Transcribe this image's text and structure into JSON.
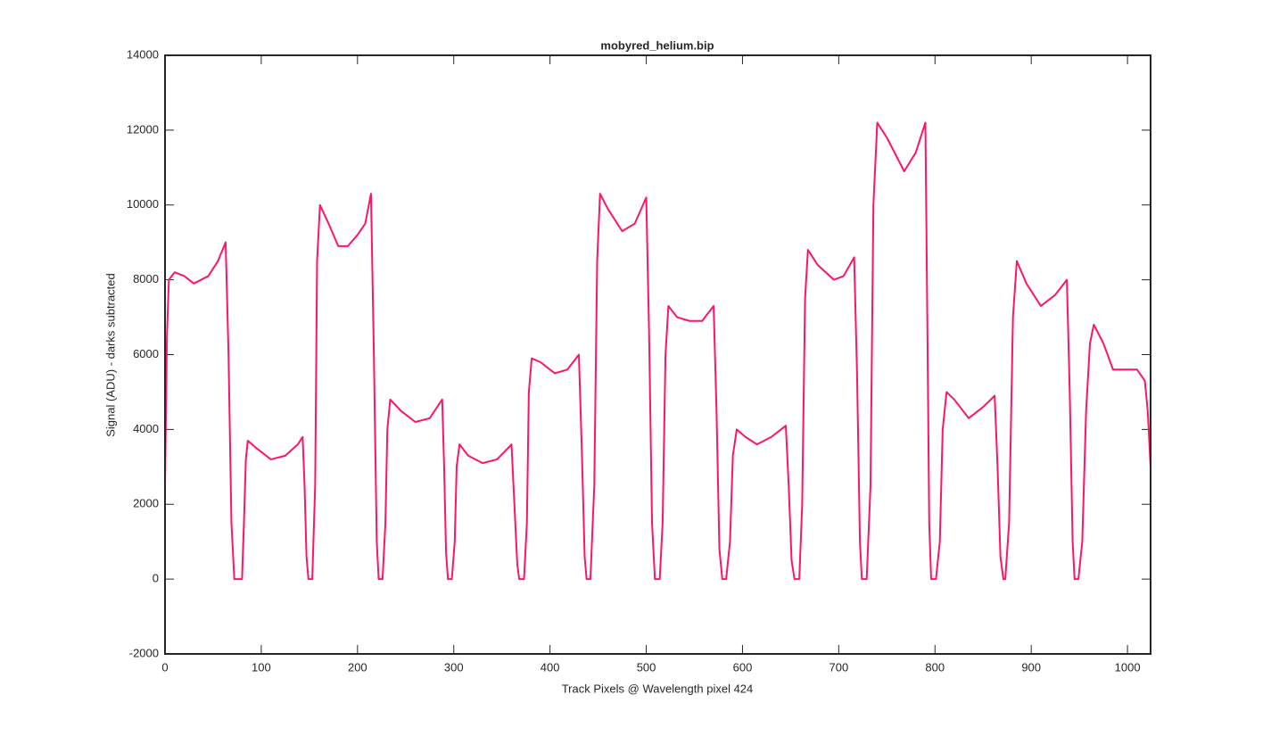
{
  "chart_data": {
    "type": "line",
    "title": "mobyred_helium.bip",
    "x_label": "Track Pixels @ Wavelength pixel 424",
    "y_label": "Signal (ADU) - darks subtracted",
    "color": "#ff1466",
    "x": [
      0,
      2,
      4,
      10,
      20,
      30,
      45,
      55,
      63,
      66,
      69,
      72,
      80,
      82,
      84,
      86,
      95,
      110,
      125,
      138,
      143,
      145,
      147,
      149,
      153,
      156,
      158,
      161,
      170,
      180,
      190,
      200,
      208,
      214,
      217,
      220,
      222,
      226,
      229,
      231,
      234,
      245,
      260,
      275,
      288,
      290,
      292,
      294,
      298,
      301,
      303,
      306,
      315,
      330,
      345,
      360,
      363,
      366,
      368,
      373,
      376,
      378,
      381,
      390,
      405,
      418,
      430,
      433,
      436,
      438,
      442,
      446,
      449,
      452,
      460,
      475,
      488,
      500,
      503,
      506,
      509,
      514,
      517,
      520,
      523,
      532,
      545,
      558,
      570,
      573,
      576,
      579,
      583,
      587,
      590,
      594,
      603,
      615,
      630,
      645,
      648,
      651,
      654,
      659,
      662,
      665,
      668,
      678,
      695,
      705,
      716,
      719,
      722,
      724,
      729,
      733,
      736,
      740,
      750,
      768,
      780,
      790,
      792,
      794,
      796,
      801,
      805,
      808,
      812,
      820,
      835,
      850,
      862,
      865,
      868,
      871,
      873,
      877,
      881,
      885,
      895,
      910,
      925,
      937,
      940,
      943,
      945,
      949,
      953,
      957,
      961,
      965,
      975,
      985,
      1000,
      1010,
      1018,
      1021,
      1024
    ],
    "values": [
      2500,
      6500,
      8000,
      8200,
      8100,
      7900,
      8100,
      8500,
      9000,
      6000,
      1500,
      0,
      0,
      1500,
      3200,
      3700,
      3500,
      3200,
      3300,
      3600,
      3800,
      2500,
      600,
      0,
      0,
      2500,
      8500,
      10000,
      9500,
      8900,
      8900,
      9200,
      9500,
      10300,
      6000,
      1000,
      0,
      0,
      1500,
      4000,
      4800,
      4500,
      4200,
      4300,
      4800,
      3000,
      700,
      0,
      0,
      1000,
      3000,
      3600,
      3300,
      3100,
      3200,
      3600,
      2000,
      400,
      0,
      0,
      1500,
      5000,
      5900,
      5800,
      5500,
      5600,
      6000,
      3500,
      600,
      0,
      0,
      2500,
      8500,
      10300,
      9900,
      9300,
      9500,
      10200,
      6500,
      1500,
      0,
      0,
      1500,
      6000,
      7300,
      7000,
      6900,
      6900,
      7300,
      4500,
      800,
      0,
      0,
      1000,
      3300,
      4000,
      3800,
      3600,
      3800,
      4100,
      2500,
      500,
      0,
      0,
      2000,
      7500,
      8800,
      8400,
      8000,
      8100,
      8600,
      5500,
      1000,
      0,
      0,
      2500,
      10000,
      12200,
      11800,
      10900,
      11400,
      12200,
      7000,
      1500,
      0,
      0,
      1000,
      4000,
      5000,
      4800,
      4300,
      4600,
      4900,
      3000,
      600,
      0,
      0,
      1500,
      7000,
      8500,
      7900,
      7300,
      7600,
      8000,
      5000,
      1000,
      0,
      0,
      1000,
      4500,
      6300,
      6800,
      6300,
      5600,
      5600,
      5600,
      5300,
      4500,
      3000
    ],
    "xlim": [
      0,
      1024
    ],
    "xticks": [
      0,
      100,
      200,
      300,
      400,
      500,
      600,
      700,
      800,
      900,
      1000
    ],
    "ylim": [
      -2000,
      14000
    ],
    "yticks": [
      -2000,
      0,
      2000,
      4000,
      6000,
      8000,
      10000,
      12000,
      14000
    ],
    "grid": false
  }
}
